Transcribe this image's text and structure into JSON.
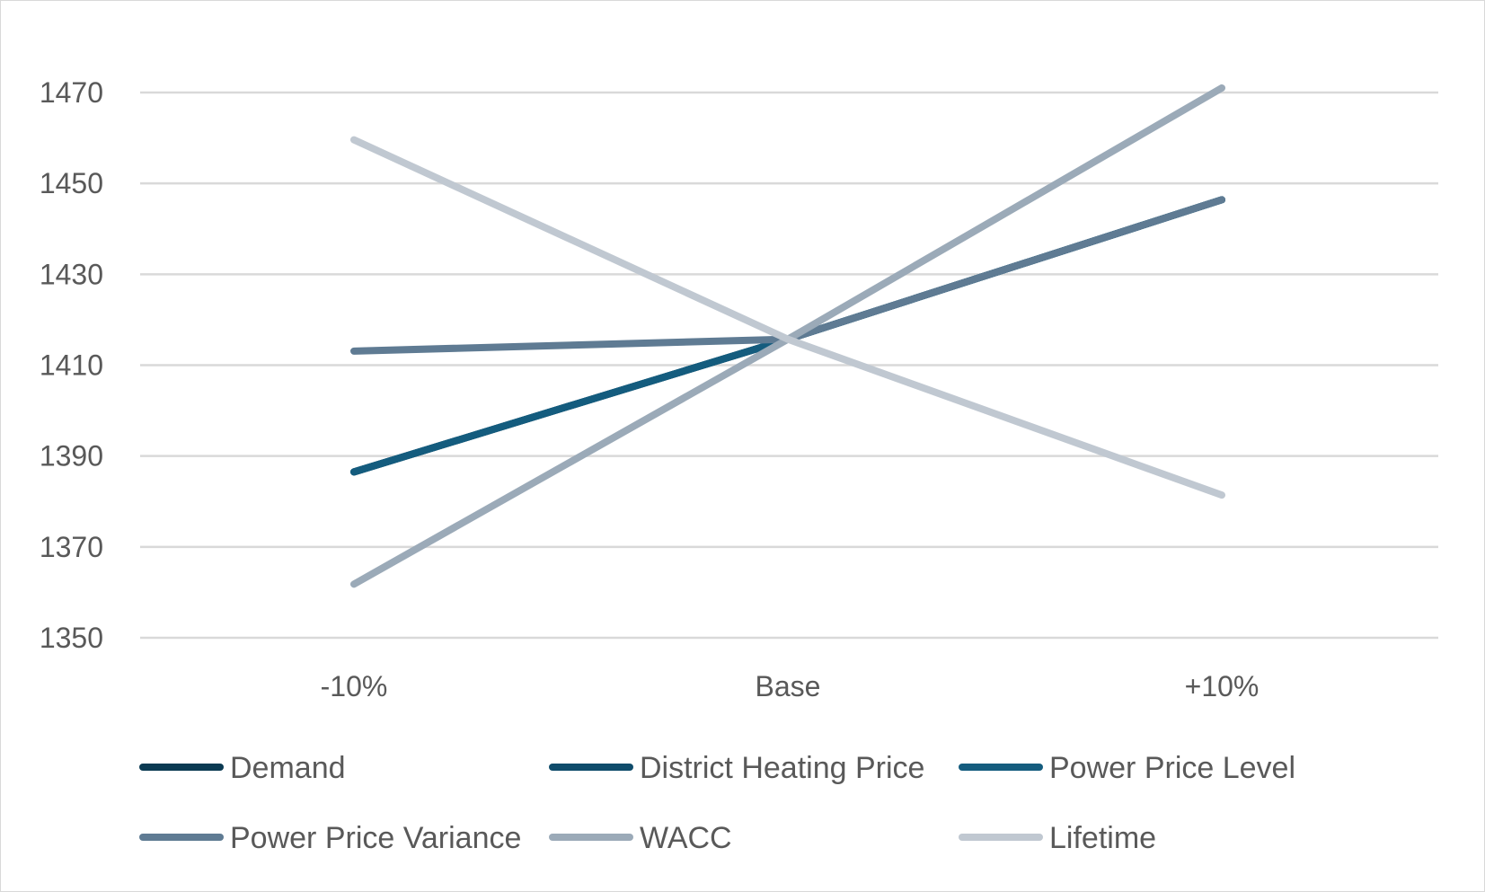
{
  "chart_data": {
    "type": "line",
    "title": "",
    "xlabel": "",
    "ylabel": "",
    "categories": [
      "-10%",
      "Base",
      "+10%"
    ],
    "ylim": [
      1350,
      1470
    ],
    "yticks": [
      1350,
      1370,
      1390,
      1410,
      1430,
      1450,
      1470
    ],
    "grid": true,
    "legend_position": "bottom",
    "series": [
      {
        "name": "Demand",
        "values": [
          1386.5,
          1415.7,
          1446.4
        ],
        "color": "#0b3a52"
      },
      {
        "name": "District Heating Price",
        "values": [
          1386.5,
          1415.7,
          1446.4
        ],
        "color": "#0f4c6b"
      },
      {
        "name": "Power Price Level",
        "values": [
          1386.5,
          1415.7,
          1446.4
        ],
        "color": "#145c7e"
      },
      {
        "name": "Power Price Variance",
        "values": [
          1413.1,
          1415.7,
          1446.4
        ],
        "color": "#5f7b93"
      },
      {
        "name": "WACC",
        "values": [
          1361.8,
          1415.7,
          1471.0
        ],
        "color": "#9baab8"
      },
      {
        "name": "Lifetime",
        "values": [
          1459.6,
          1415.7,
          1381.4
        ],
        "color": "#c0c8d1"
      }
    ]
  }
}
